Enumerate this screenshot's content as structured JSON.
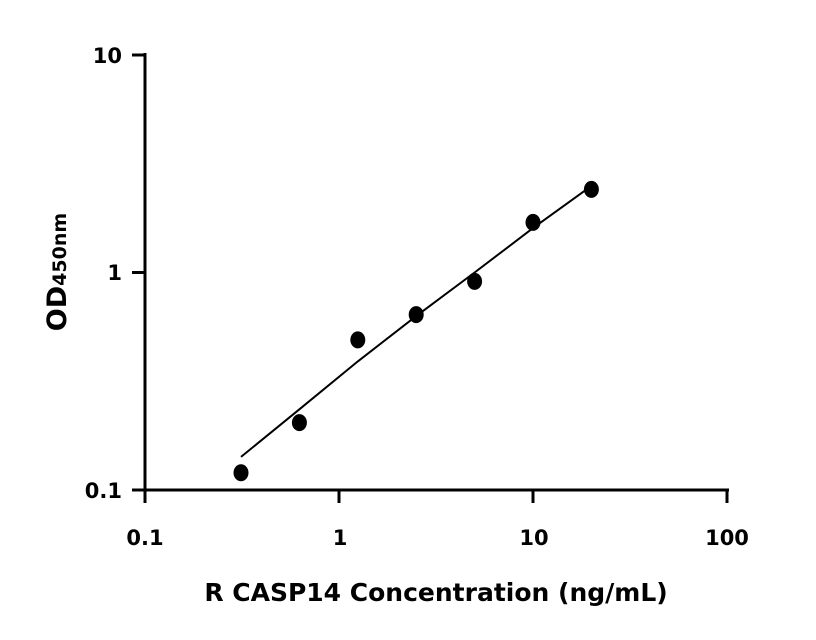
{
  "chart_data": {
    "type": "scatter",
    "title": "",
    "xlabel": "R CASP14 Concentration (ng/mL)",
    "ylabel_main": "OD",
    "ylabel_sub": "450nm",
    "xscale": "log",
    "yscale": "log",
    "xlim": [
      0.1,
      100
    ],
    "ylim": [
      0.1,
      10
    ],
    "xticks": [
      "0.1",
      "1",
      "10",
      "100"
    ],
    "yticks": [
      "0.1",
      "1",
      "10"
    ],
    "grid": false,
    "points": [
      {
        "x": 0.3125,
        "y": 0.12
      },
      {
        "x": 0.625,
        "y": 0.204
      },
      {
        "x": 1.25,
        "y": 0.49
      },
      {
        "x": 2.5,
        "y": 0.64
      },
      {
        "x": 5,
        "y": 0.91
      },
      {
        "x": 10,
        "y": 1.7
      },
      {
        "x": 20,
        "y": 2.41
      }
    ],
    "fit_curve": [
      {
        "x": 0.3125,
        "y": 0.142
      },
      {
        "x": 0.625,
        "y": 0.235
      },
      {
        "x": 1.25,
        "y": 0.39
      },
      {
        "x": 2.5,
        "y": 0.63
      },
      {
        "x": 5,
        "y": 1.0
      },
      {
        "x": 10,
        "y": 1.6
      },
      {
        "x": 20,
        "y": 2.5
      }
    ],
    "colors": {
      "points": "#000000",
      "line": "#000000"
    }
  }
}
